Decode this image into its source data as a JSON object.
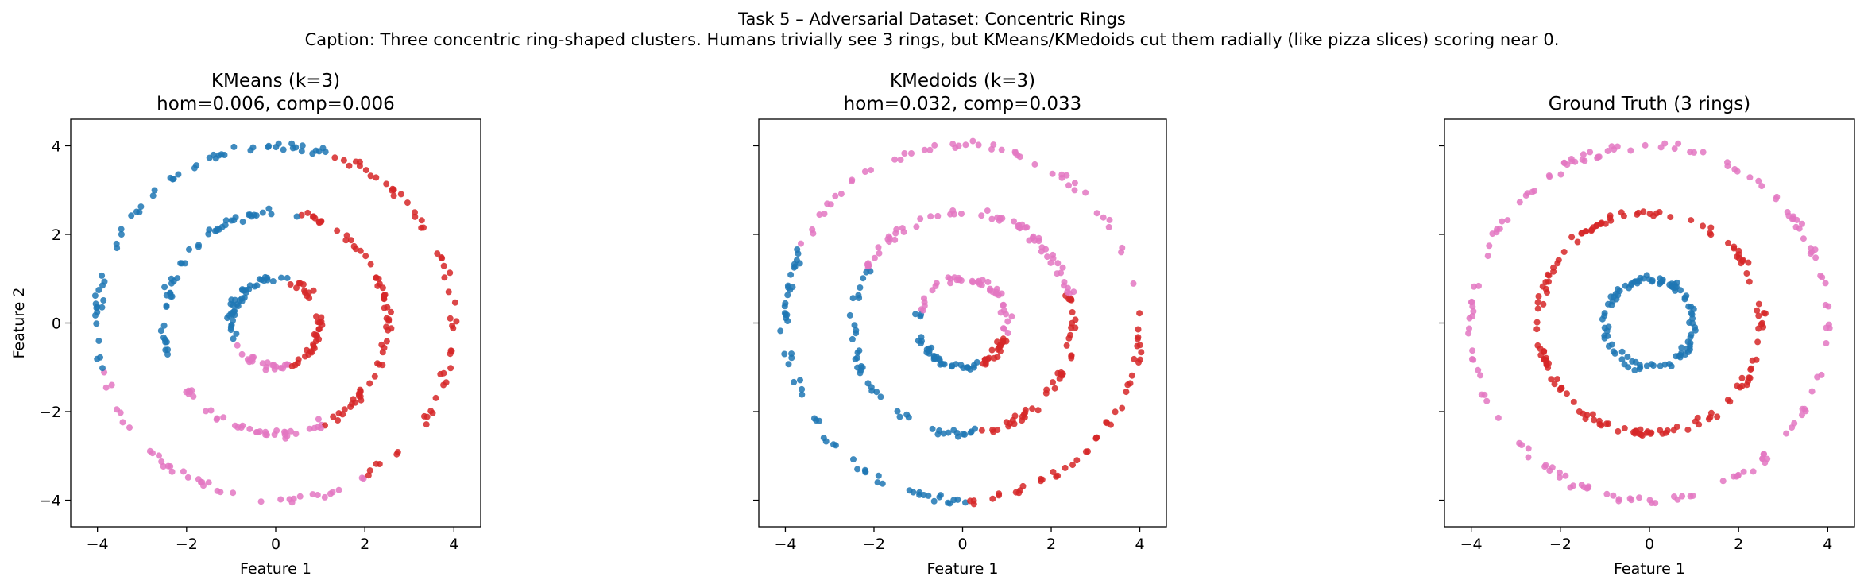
{
  "suptitle": {
    "line1": "Task 5 – Adversarial Dataset: Concentric Rings",
    "line2": "Caption: Three concentric ring-shaped clusters. Humans trivially see 3 rings, but KMeans/KMedoids cut them radially (like pizza slices) scoring near 0."
  },
  "colors": {
    "blue": "#1f77b4",
    "red": "#d62728",
    "pink": "#e377c2"
  },
  "chart_data": [
    {
      "type": "scatter",
      "title": "KMeans (k=3)\nhom=0.006, comp=0.006",
      "xlabel": "Feature 1",
      "ylabel": "Feature 2",
      "xlim": [
        -4.6,
        4.6
      ],
      "ylim": [
        -4.6,
        4.6
      ],
      "xticks": [
        -4,
        -2,
        0,
        2,
        4
      ],
      "yticks": [
        -4,
        -2,
        0,
        2,
        4
      ],
      "xtick_labels": [
        "−4",
        "−2",
        "0",
        "2",
        "4"
      ],
      "ytick_labels": [
        "−4",
        "−2",
        "0",
        "2",
        "4"
      ],
      "grid": false,
      "rings": [
        {
          "radius": 1.0,
          "count": 100,
          "segments": [
            {
              "from_deg": -70,
              "to_deg": 75,
              "color": "red"
            },
            {
              "from_deg": 75,
              "to_deg": 205,
              "color": "blue"
            },
            {
              "from_deg": 205,
              "to_deg": 290,
              "color": "pink"
            }
          ]
        },
        {
          "radius": 2.5,
          "count": 150,
          "segments": [
            {
              "from_deg": -65,
              "to_deg": 78,
              "color": "red"
            },
            {
              "from_deg": 78,
              "to_deg": 200,
              "color": "blue"
            },
            {
              "from_deg": 200,
              "to_deg": 295,
              "color": "pink"
            }
          ]
        },
        {
          "radius": 4.0,
          "count": 150,
          "segments": [
            {
              "from_deg": -60,
              "to_deg": 72,
              "color": "red"
            },
            {
              "from_deg": 72,
              "to_deg": 195,
              "color": "blue"
            },
            {
              "from_deg": 195,
              "to_deg": 300,
              "color": "pink"
            }
          ]
        }
      ]
    },
    {
      "type": "scatter",
      "title": "KMedoids (k=3)\nhom=0.032, comp=0.033",
      "xlabel": "Feature 1",
      "ylabel": "",
      "xlim": [
        -4.6,
        4.6
      ],
      "ylim": [
        -4.6,
        4.6
      ],
      "xticks": [
        -4,
        -2,
        0,
        2,
        4
      ],
      "yticks": [
        -4,
        -2,
        0,
        2,
        4
      ],
      "xtick_labels": [
        "−4",
        "−2",
        "0",
        "2",
        "4"
      ],
      "ytick_labels": [],
      "grid": false,
      "rings": [
        {
          "radius": 1.0,
          "count": 100,
          "segments": [
            {
              "from_deg": -65,
              "to_deg": -15,
              "color": "red"
            },
            {
              "from_deg": -15,
              "to_deg": 165,
              "color": "pink"
            },
            {
              "from_deg": 165,
              "to_deg": 295,
              "color": "blue"
            }
          ]
        },
        {
          "radius": 2.5,
          "count": 150,
          "segments": [
            {
              "from_deg": -82,
              "to_deg": 15,
              "color": "red"
            },
            {
              "from_deg": 15,
              "to_deg": 150,
              "color": "pink"
            },
            {
              "from_deg": 150,
              "to_deg": 278,
              "color": "blue"
            }
          ]
        },
        {
          "radius": 4.0,
          "count": 150,
          "segments": [
            {
              "from_deg": -88,
              "to_deg": 10,
              "color": "red"
            },
            {
              "from_deg": 10,
              "to_deg": 155,
              "color": "pink"
            },
            {
              "from_deg": 155,
              "to_deg": 272,
              "color": "blue"
            }
          ]
        }
      ]
    },
    {
      "type": "scatter",
      "title": "Ground Truth (3 rings)",
      "xlabel": "Feature 1",
      "ylabel": "",
      "xlim": [
        -4.6,
        4.6
      ],
      "ylim": [
        -4.6,
        4.6
      ],
      "xticks": [
        -4,
        -2,
        0,
        2,
        4
      ],
      "yticks": [
        -4,
        -2,
        0,
        2,
        4
      ],
      "xtick_labels": [
        "−4",
        "−2",
        "0",
        "2",
        "4"
      ],
      "ytick_labels": [],
      "grid": false,
      "rings": [
        {
          "radius": 1.0,
          "count": 100,
          "segments": [
            {
              "from_deg": 0,
              "to_deg": 360,
              "color": "blue"
            }
          ]
        },
        {
          "radius": 2.5,
          "count": 150,
          "segments": [
            {
              "from_deg": 0,
              "to_deg": 360,
              "color": "red"
            }
          ]
        },
        {
          "radius": 4.0,
          "count": 150,
          "segments": [
            {
              "from_deg": 0,
              "to_deg": 360,
              "color": "pink"
            }
          ]
        }
      ]
    }
  ]
}
